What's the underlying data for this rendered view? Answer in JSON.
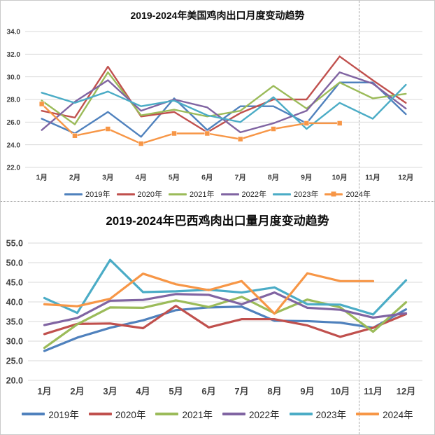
{
  "chart_data": [
    {
      "type": "line",
      "title": "2019-2024年美国鸡肉出口月度变动趋势",
      "categories": [
        "1月",
        "2月",
        "3月",
        "4月",
        "5月",
        "6月",
        "7月",
        "8月",
        "9月",
        "10月",
        "11月",
        "12月"
      ],
      "ylim": [
        22.0,
        34.0
      ],
      "ytick_step": 2.0,
      "grid": true,
      "legend_position": "bottom",
      "series": [
        {
          "name": "2019年",
          "color": "#4F81BD",
          "values": [
            26.3,
            25.0,
            26.9,
            24.7,
            28.1,
            25.3,
            27.4,
            27.4,
            25.9,
            29.5,
            29.5,
            26.7
          ]
        },
        {
          "name": "2020年",
          "color": "#C0504D",
          "values": [
            27.0,
            26.4,
            30.9,
            26.5,
            26.9,
            25.1,
            26.8,
            28.0,
            28.0,
            31.8,
            29.7,
            27.7
          ]
        },
        {
          "name": "2021年",
          "color": "#9BBB59",
          "values": [
            27.9,
            25.8,
            30.4,
            26.6,
            27.1,
            26.5,
            27.0,
            29.2,
            27.2,
            29.5,
            28.1,
            28.5
          ]
        },
        {
          "name": "2022年",
          "color": "#8064A2",
          "values": [
            25.3,
            27.8,
            29.7,
            27.0,
            28.0,
            27.3,
            25.1,
            25.9,
            27.0,
            30.4,
            29.4,
            27.2
          ]
        },
        {
          "name": "2023年",
          "color": "#4BACC6",
          "values": [
            28.6,
            27.7,
            28.7,
            27.4,
            27.9,
            26.6,
            26.0,
            28.2,
            25.4,
            27.7,
            26.3,
            29.3
          ]
        },
        {
          "name": "2024年",
          "color": "#F79646",
          "marker": "square",
          "values": [
            27.6,
            24.8,
            25.4,
            24.1,
            25.0,
            25.0,
            24.5,
            25.4,
            25.9,
            25.9
          ]
        }
      ]
    },
    {
      "type": "line",
      "title": "2019-2024年巴西鸡肉出口量月度变动趋势",
      "categories": [
        "1月",
        "2月",
        "3月",
        "4月",
        "5月",
        "6月",
        "7月",
        "8月",
        "9月",
        "10月",
        "11月",
        "12月"
      ],
      "ylim": [
        20.0,
        55.0
      ],
      "ytick_step": 5.0,
      "grid": true,
      "legend_position": "bottom",
      "series": [
        {
          "name": "2019年",
          "color": "#4F81BD",
          "values": [
            27.5,
            30.9,
            33.4,
            35.3,
            37.9,
            38.6,
            38.8,
            35.2,
            35.1,
            34.7,
            33.4,
            38.1
          ]
        },
        {
          "name": "2020年",
          "color": "#C0504D",
          "values": [
            31.8,
            34.4,
            34.5,
            33.3,
            39.0,
            33.5,
            35.6,
            35.6,
            34.0,
            31.1,
            33.4,
            36.9
          ]
        },
        {
          "name": "2021年",
          "color": "#9BBB59",
          "values": [
            28.3,
            34.3,
            38.6,
            38.5,
            40.4,
            38.7,
            41.3,
            37.1,
            40.6,
            38.6,
            32.4,
            39.9
          ]
        },
        {
          "name": "2022年",
          "color": "#8064A2",
          "values": [
            34.1,
            35.9,
            40.3,
            40.5,
            42.0,
            41.8,
            39.4,
            42.4,
            38.5,
            38.0,
            36.0,
            37.1
          ]
        },
        {
          "name": "2023年",
          "color": "#4BACC6",
          "values": [
            41.0,
            37.2,
            50.7,
            42.5,
            42.7,
            43.1,
            42.4,
            43.7,
            39.4,
            39.3,
            36.8,
            45.5
          ]
        },
        {
          "name": "2024年",
          "color": "#F79646",
          "values": [
            39.4,
            38.9,
            40.8,
            47.2,
            44.5,
            43.0,
            45.3,
            37.0,
            47.3,
            45.3,
            45.3
          ]
        }
      ]
    }
  ],
  "style": {
    "grid_color": "#d9d9d9",
    "axis_text_color": "#404040",
    "title_color": "#0d0d0d"
  }
}
